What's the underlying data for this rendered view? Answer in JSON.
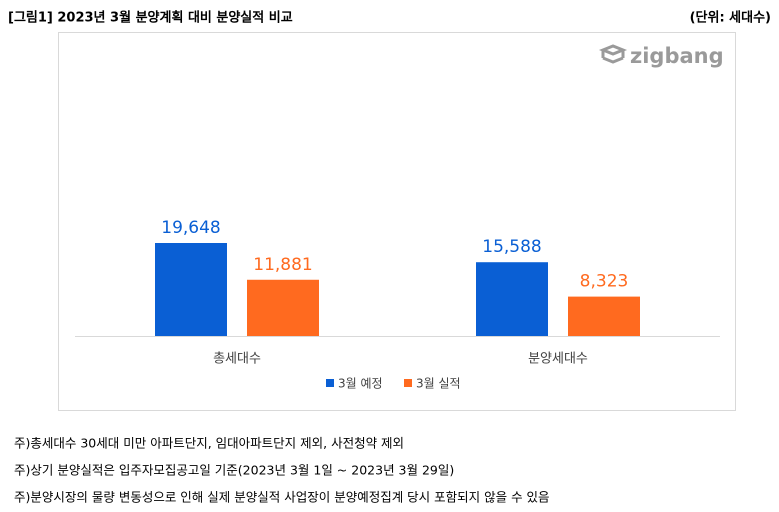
{
  "chart_data": {
    "type": "bar",
    "title": "[그림1] 2023년 3월 분양계획 대비 분양실적 비교",
    "unit": "(단위: 세대수)",
    "logo": "zigbang",
    "categories": [
      "총세대수",
      "분양세대수"
    ],
    "series": [
      {
        "name": "3월 예정",
        "color": "#0a5fd4",
        "values": [
          19648,
          15588
        ],
        "value_labels": [
          "19,648",
          "15,588"
        ]
      },
      {
        "name": "3월 실적",
        "color": "#ff6a1f",
        "values": [
          11881,
          8323
        ],
        "value_labels": [
          "11,881",
          "8,323"
        ]
      }
    ],
    "legend": "bottom",
    "notes": [
      "주)총세대수 30세대 미만 아파트단지, 임대아파트단지 제외, 사전청약 제외",
      "주)상기 분양실적은 입주자모집공고일 기준(2023년 3월 1일 ~ 2023년 3월 29일)",
      "주)분양시장의 물량 변동성으로 인해 실제 분양실적 사업장이 분양예정집계 당시 포함되지 않을 수 있음"
    ]
  }
}
